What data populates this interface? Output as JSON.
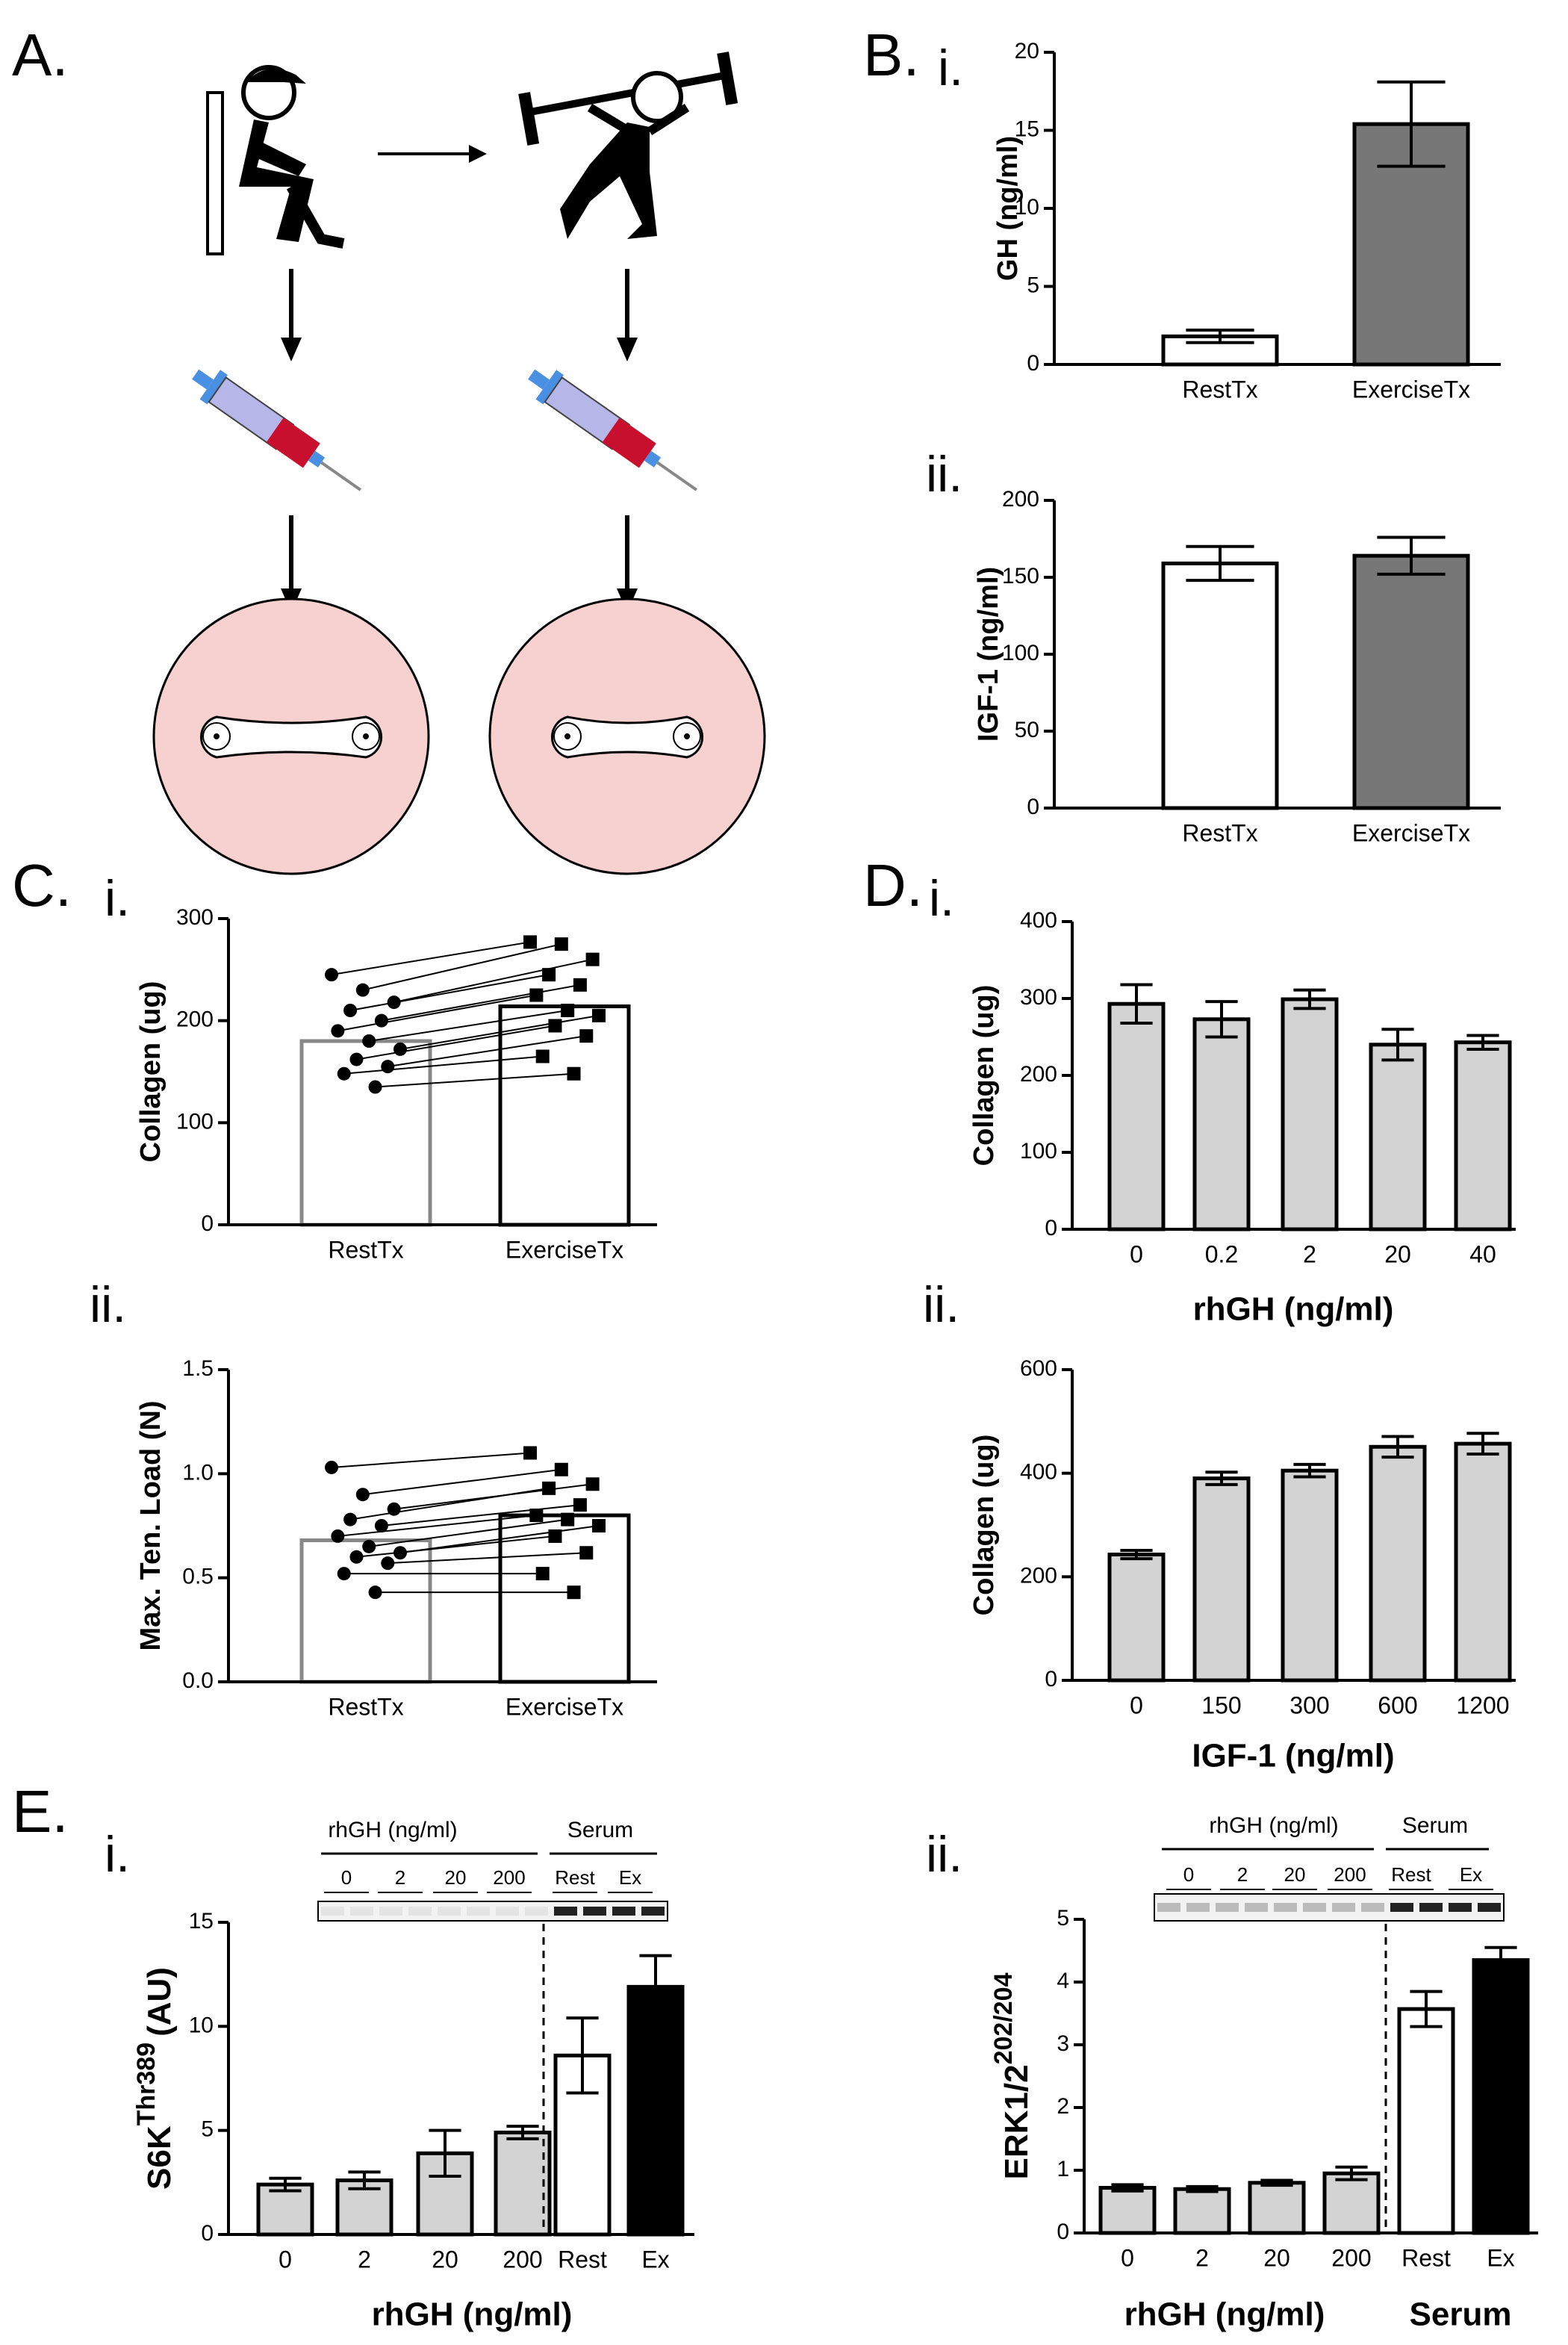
{
  "figure_label": "A.",
  "chart_data": [
    {
      "type": "bar",
      "panel": "B.",
      "sub": "i.",
      "ylabel": "GH (ng/ml)",
      "categories": [
        "RestTx",
        "ExerciseTx"
      ],
      "values": [
        1.8,
        15.4
      ],
      "errors": [
        0.4,
        2.7
      ],
      "colors": [
        "#ffffff",
        "#777777"
      ],
      "ylim": [
        0,
        20
      ],
      "yticks": [
        0,
        5,
        10,
        15,
        20
      ]
    },
    {
      "type": "bar",
      "sub": "ii.",
      "ylabel": "IGF-1 (ng/ml)",
      "categories": [
        "RestTx",
        "ExerciseTx"
      ],
      "values": [
        159,
        164
      ],
      "errors": [
        11,
        12
      ],
      "colors": [
        "#ffffff",
        "#777777"
      ],
      "ylim": [
        0,
        200
      ],
      "yticks": [
        0,
        50,
        100,
        150,
        200
      ]
    },
    {
      "type": "paired",
      "panel": "C.",
      "sub": "i.",
      "ylabel": "Collagen (ug)",
      "categories": [
        "RestTx",
        "ExerciseTx"
      ],
      "values": [
        180,
        214
      ],
      "colors": [
        "#ffffff",
        "#ffffff"
      ],
      "edge_colors": [
        "#888888",
        "#000000"
      ],
      "rest_points": [
        245,
        230,
        218,
        210,
        200,
        190,
        180,
        172,
        162,
        155,
        148,
        135
      ],
      "exercise_points": [
        277,
        275,
        260,
        245,
        235,
        225,
        210,
        205,
        195,
        185,
        165,
        148
      ],
      "ylim": [
        0,
        300
      ],
      "yticks": [
        0,
        100,
        200,
        300
      ]
    },
    {
      "type": "paired",
      "sub": "ii.",
      "ylabel": "Max. Ten. Load (N)",
      "categories": [
        "RestTx",
        "ExerciseTx"
      ],
      "values": [
        0.68,
        0.8
      ],
      "colors": [
        "#ffffff",
        "#ffffff"
      ],
      "edge_colors": [
        "#888888",
        "#000000"
      ],
      "rest_points": [
        1.03,
        0.9,
        0.83,
        0.78,
        0.75,
        0.7,
        0.65,
        0.62,
        0.6,
        0.57,
        0.52,
        0.43
      ],
      "exercise_points": [
        1.1,
        1.02,
        0.95,
        0.93,
        0.85,
        0.8,
        0.78,
        0.75,
        0.7,
        0.62,
        0.52,
        0.43
      ],
      "ylim": [
        0,
        1.5
      ],
      "yticks": [
        {
          "value": 0,
          "label": "0.0"
        },
        {
          "value": 0.5,
          "label": "0.5"
        },
        {
          "value": 1,
          "label": "1.0"
        },
        {
          "value": 1.5,
          "label": "1.5"
        }
      ]
    },
    {
      "type": "bar",
      "panel": "D.",
      "sub": "i.",
      "ylabel": "Collagen (ug)",
      "xlabel": "rhGH (ng/ml)",
      "categories": [
        "0",
        "0.2",
        "2",
        "20",
        "40"
      ],
      "values": [
        293,
        273,
        299,
        240,
        243
      ],
      "errors": [
        25,
        23,
        12,
        20,
        9
      ],
      "colors": [
        "#d3d3d3",
        "#d3d3d3",
        "#d3d3d3",
        "#d3d3d3",
        "#d3d3d3"
      ],
      "ylim": [
        0,
        400
      ],
      "yticks": [
        0,
        100,
        200,
        300,
        400
      ]
    },
    {
      "type": "bar",
      "sub": "ii.",
      "ylabel": "Collagen (ug)",
      "xlabel": "IGF-1 (ng/ml)",
      "categories": [
        "0",
        "150",
        "300",
        "600",
        "1200"
      ],
      "values": [
        243,
        390,
        405,
        451,
        457
      ],
      "errors": [
        8,
        12,
        12,
        20,
        20
      ],
      "colors": [
        "#d3d3d3",
        "#d3d3d3",
        "#d3d3d3",
        "#d3d3d3",
        "#d3d3d3"
      ],
      "ylim": [
        0,
        600
      ],
      "yticks": [
        0,
        200,
        400,
        600
      ]
    },
    {
      "type": "blot_bar",
      "panel": "E.",
      "sub": "i.",
      "ylabel": "S6K",
      "ylabel_sup": "Thr389",
      "ylabel_unit": "(AU)",
      "xlabel": "rhGH (ng/ml)",
      "blot_header": [
        "rhGH (ng/ml)",
        "Serum"
      ],
      "lanes": [
        "0",
        "2",
        "20",
        "200",
        "Rest",
        "Ex"
      ],
      "categories": [
        "0",
        "2",
        "20",
        "200",
        "Rest",
        "Ex"
      ],
      "values": [
        2.4,
        2.6,
        3.9,
        4.9,
        8.6,
        11.9
      ],
      "errors": [
        0.3,
        0.4,
        1.1,
        0.3,
        1.8,
        1.5
      ],
      "colors": [
        "#d3d3d3",
        "#d3d3d3",
        "#d3d3d3",
        "#d3d3d3",
        "#ffffff",
        "#000000"
      ],
      "ylim": [
        0,
        15
      ],
      "yticks": [
        0,
        5,
        10,
        15
      ]
    },
    {
      "type": "blot_bar",
      "sub": "ii.",
      "ylabel": "ERK1/2",
      "ylabel_sup": "202/204",
      "xlabel": "rhGH (ng/ml)",
      "xlabel2": "Serum",
      "blot_header": [
        "rhGH (ng/ml)",
        "Serum"
      ],
      "lanes": [
        "0",
        "2",
        "20",
        "200",
        "Rest",
        "Ex"
      ],
      "categories": [
        "0",
        "2",
        "20",
        "200",
        "Rest",
        "Ex"
      ],
      "values": [
        0.72,
        0.7,
        0.8,
        0.95,
        3.57,
        4.35
      ],
      "errors": [
        0.05,
        0.04,
        0.04,
        0.1,
        0.28,
        0.2
      ],
      "colors": [
        "#d3d3d3",
        "#d3d3d3",
        "#d3d3d3",
        "#d3d3d3",
        "#ffffff",
        "#000000"
      ],
      "ylim": [
        0,
        5
      ],
      "yticks": [
        0,
        1,
        2,
        3,
        4,
        5
      ]
    }
  ]
}
